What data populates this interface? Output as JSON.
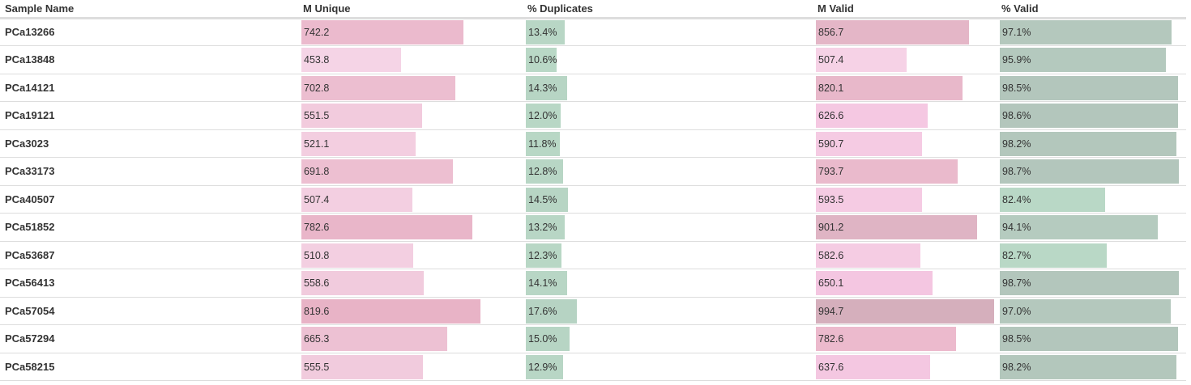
{
  "columns": [
    {
      "key": "name",
      "label": "Sample Name"
    },
    {
      "key": "m_unique",
      "label": "M Unique"
    },
    {
      "key": "pct_dup",
      "label": "% Duplicates"
    },
    {
      "key": "m_valid",
      "label": "M Valid"
    },
    {
      "key": "pct_valid",
      "label": "% Valid"
    }
  ],
  "scales": {
    "m_unique": {
      "max": 1000,
      "colors": [
        "#f5d4e6",
        "#e8b2c6"
      ]
    },
    "pct_dup": {
      "max": 100,
      "colors": [
        "#b9d8c6",
        "#b1cfc0"
      ]
    },
    "m_valid": {
      "max": 1000,
      "colors": [
        "#f6d2e6",
        "#d5afbc"
      ]
    },
    "pct_valid": {
      "min": 80,
      "max": 100,
      "colors": [
        "#b9d8c6",
        "#b3c6bc"
      ]
    }
  },
  "rows": [
    {
      "name": "PCa13266",
      "m_unique": "742.2",
      "pct_dup": "13.4%",
      "m_valid": "856.7",
      "pct_valid": "97.1%"
    },
    {
      "name": "PCa13848",
      "m_unique": "453.8",
      "pct_dup": "10.6%",
      "m_valid": "507.4",
      "pct_valid": "95.9%"
    },
    {
      "name": "PCa14121",
      "m_unique": "702.8",
      "pct_dup": "14.3%",
      "m_valid": "820.1",
      "pct_valid": "98.5%"
    },
    {
      "name": "PCa19121",
      "m_unique": "551.5",
      "pct_dup": "12.0%",
      "m_valid": "626.6",
      "pct_valid": "98.6%"
    },
    {
      "name": "PCa3023",
      "m_unique": "521.1",
      "pct_dup": "11.8%",
      "m_valid": "590.7",
      "pct_valid": "98.2%"
    },
    {
      "name": "PCa33173",
      "m_unique": "691.8",
      "pct_dup": "12.8%",
      "m_valid": "793.7",
      "pct_valid": "98.7%"
    },
    {
      "name": "PCa40507",
      "m_unique": "507.4",
      "pct_dup": "14.5%",
      "m_valid": "593.5",
      "pct_valid": "82.4%"
    },
    {
      "name": "PCa51852",
      "m_unique": "782.6",
      "pct_dup": "13.2%",
      "m_valid": "901.2",
      "pct_valid": "94.1%"
    },
    {
      "name": "PCa53687",
      "m_unique": "510.8",
      "pct_dup": "12.3%",
      "m_valid": "582.6",
      "pct_valid": "82.7%"
    },
    {
      "name": "PCa56413",
      "m_unique": "558.6",
      "pct_dup": "14.1%",
      "m_valid": "650.1",
      "pct_valid": "98.7%"
    },
    {
      "name": "PCa57054",
      "m_unique": "819.6",
      "pct_dup": "17.6%",
      "m_valid": "994.7",
      "pct_valid": "97.0%"
    },
    {
      "name": "PCa57294",
      "m_unique": "665.3",
      "pct_dup": "15.0%",
      "m_valid": "782.6",
      "pct_valid": "98.5%"
    },
    {
      "name": "PCa58215",
      "m_unique": "555.5",
      "pct_dup": "12.9%",
      "m_valid": "637.6",
      "pct_valid": "98.2%"
    }
  ]
}
